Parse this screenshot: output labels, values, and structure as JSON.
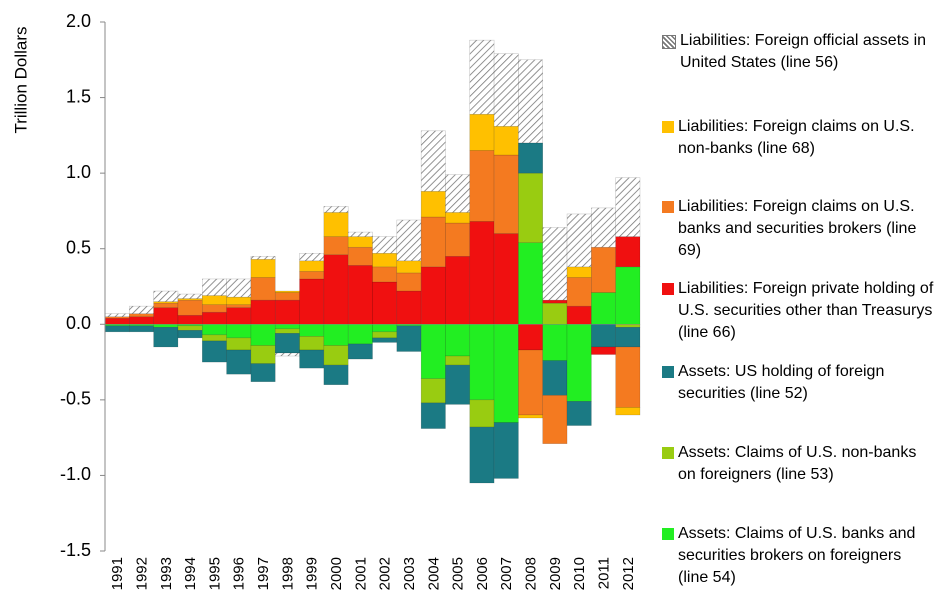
{
  "chart_data": {
    "type": "stacked-bar",
    "y_label": "Trillion Dollars",
    "categories": [
      "1991",
      "1992",
      "1993",
      "1994",
      "1995",
      "1996",
      "1997",
      "1998",
      "1999",
      "2000",
      "2001",
      "2002",
      "2003",
      "2004",
      "2005",
      "2006",
      "2007",
      "2008",
      "2009",
      "2010",
      "2011",
      "2012"
    ],
    "ylim": [
      -1.5,
      2.0
    ],
    "yticks": [
      {
        "value": 2,
        "label": "2.0"
      },
      1.5,
      {
        "value": 1,
        "label": "1.0"
      },
      0.5,
      {
        "value": 0,
        "label": "0.0"
      },
      -0.5,
      {
        "value": -1,
        "label": "-1.0"
      },
      -1.5
    ],
    "series": [
      {
        "name": "Liabilities: Foreign official assets in United States (line 56)",
        "color": "#777777",
        "hatch": true,
        "values": [
          0.02,
          0.05,
          0.07,
          0.03,
          0.11,
          0.12,
          0.02,
          -0.02,
          0.05,
          0.04,
          0.03,
          0.11,
          0.27,
          0.4,
          0.25,
          0.49,
          0.48,
          0.55,
          0.48,
          0.35,
          0.26,
          0.39
        ]
      },
      {
        "name": "Liabilities: Foreign claims on U.S. non-banks (line 68)",
        "color": "#FFC000",
        "values": [
          0,
          0,
          0.01,
          0.01,
          0.06,
          0.05,
          0.12,
          0.01,
          0.07,
          0.16,
          0.07,
          0.09,
          0.08,
          0.17,
          0.07,
          0.24,
          0.19,
          -0.02,
          0,
          0.07,
          0,
          -0.05
        ]
      },
      {
        "name": "Liabilities: Foreign claims on U.S. banks and securities brokers (line 69)",
        "color": "#F47A20",
        "values": [
          0.01,
          0.02,
          0.03,
          0.1,
          0.05,
          0.02,
          0.15,
          0.05,
          0.05,
          0.12,
          0.12,
          0.1,
          0.12,
          0.33,
          0.22,
          0.47,
          0.52,
          -0.43,
          -0.32,
          0.19,
          0.3,
          -0.4
        ]
      },
      {
        "name": "Liabilities: Foreign private holding of U.S. securities other than Treasurys (line 66)",
        "color": "#F01010",
        "values": [
          0.04,
          0.05,
          0.11,
          0.06,
          0.08,
          0.11,
          0.16,
          0.16,
          0.3,
          0.46,
          0.39,
          0.28,
          0.22,
          0.38,
          0.45,
          0.68,
          0.6,
          -0.17,
          0.02,
          0.12,
          -0.05,
          0.2
        ]
      },
      {
        "name": "Assets: US holding of foreign securities (line 52)",
        "color": "#1B7A84",
        "values": [
          -0.04,
          -0.04,
          -0.13,
          -0.05,
          -0.14,
          -0.16,
          -0.12,
          -0.13,
          -0.12,
          -0.13,
          -0.1,
          -0.03,
          -0.17,
          -0.17,
          -0.26,
          -0.37,
          -0.37,
          0.2,
          -0.23,
          -0.16,
          -0.15,
          -0.13
        ]
      },
      {
        "name": "Assets: Claims of U.S. non-banks on foreigners (line 53)",
        "color": "#99CC11",
        "values": [
          0,
          0,
          0,
          -0.03,
          -0.04,
          -0.08,
          -0.12,
          -0.03,
          -0.09,
          -0.13,
          0,
          -0.04,
          0,
          -0.16,
          -0.06,
          -0.18,
          0,
          0.46,
          0.14,
          0,
          0,
          -0.02
        ]
      },
      {
        "name": "Assets: Claims of U.S. banks and securities brokers on foreigners (line 54)",
        "color": "#22EE22",
        "values": [
          -0.01,
          -0.01,
          -0.02,
          -0.01,
          -0.07,
          -0.09,
          -0.14,
          -0.03,
          -0.08,
          -0.14,
          -0.13,
          -0.05,
          -0.01,
          -0.36,
          -0.21,
          -0.5,
          -0.65,
          0.54,
          -0.24,
          -0.51,
          0.21,
          0.38
        ]
      }
    ]
  }
}
